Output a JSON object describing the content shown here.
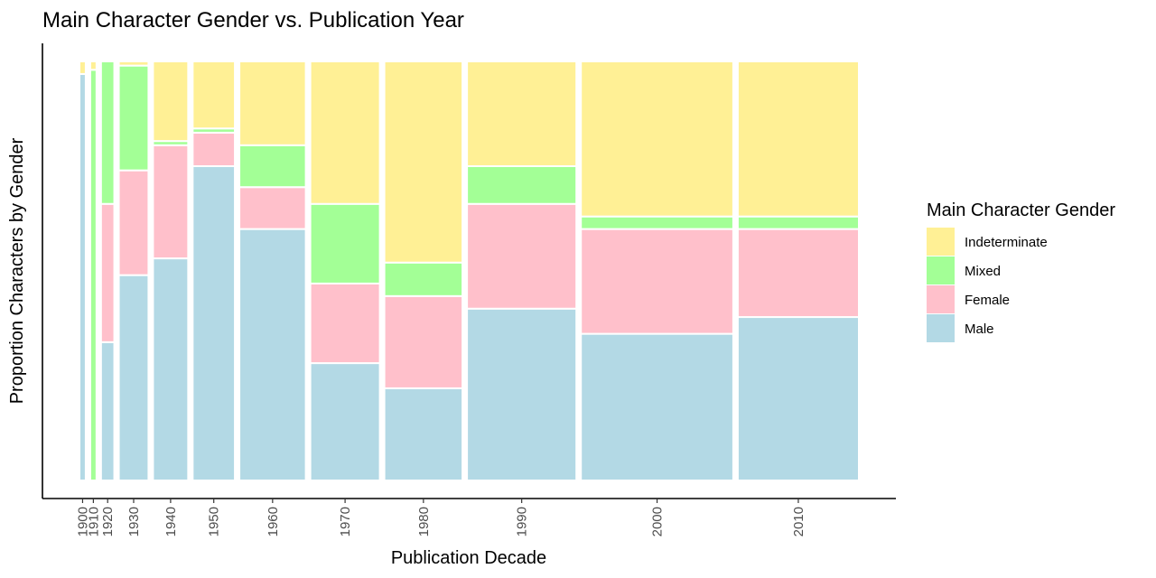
{
  "chart_data": {
    "type": "mosaic",
    "title": "Main Character Gender vs. Publication Year",
    "xlabel": "Publication Decade",
    "ylabel": "Proportion Characters by Gender",
    "legend_title": "Main Character Gender",
    "legend_position": "right",
    "categories": [
      "1900",
      "1910",
      "1920",
      "1930",
      "1940",
      "1950",
      "1960",
      "1970",
      "1980",
      "1990",
      "2000",
      "2010"
    ],
    "category_share": [
      0.008,
      0.008,
      0.017,
      0.038,
      0.045,
      0.054,
      0.085,
      0.089,
      0.1,
      0.14,
      0.195,
      0.155
    ],
    "series": [
      {
        "name": "Male",
        "color": "#b3d9e5",
        "values": [
          0.97,
          0.0,
          0.33,
          0.49,
          0.53,
          0.75,
          0.6,
          0.28,
          0.22,
          0.41,
          0.35,
          0.39
        ]
      },
      {
        "name": "Female",
        "color": "#ffc0cb",
        "values": [
          0.0,
          0.0,
          0.33,
          0.25,
          0.27,
          0.08,
          0.1,
          0.19,
          0.22,
          0.25,
          0.25,
          0.21
        ]
      },
      {
        "name": "Mixed",
        "color": "#a3ff96",
        "values": [
          0.0,
          0.98,
          0.34,
          0.25,
          0.01,
          0.01,
          0.1,
          0.19,
          0.08,
          0.09,
          0.03,
          0.03
        ]
      },
      {
        "name": "Indeterminate",
        "color": "#fff095",
        "values": [
          0.03,
          0.02,
          0.0,
          0.01,
          0.19,
          0.16,
          0.2,
          0.34,
          0.48,
          0.25,
          0.37,
          0.37
        ]
      }
    ],
    "legend_order": [
      "Indeterminate",
      "Mixed",
      "Female",
      "Male"
    ],
    "grid": false
  }
}
